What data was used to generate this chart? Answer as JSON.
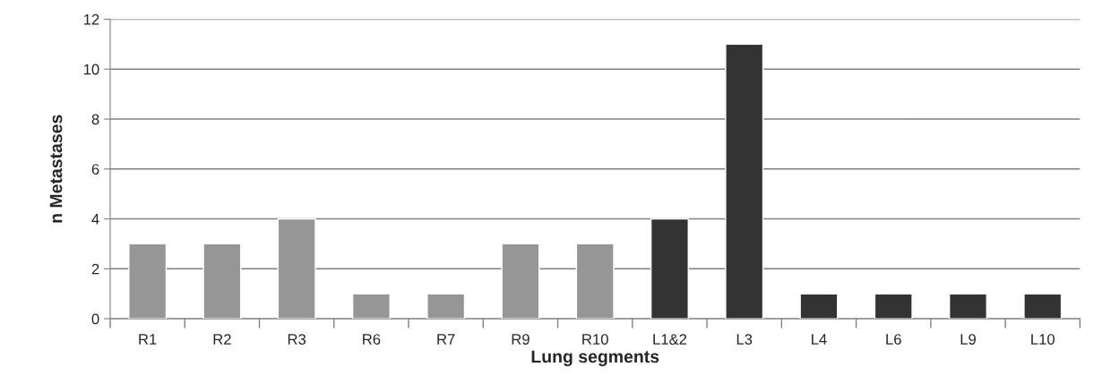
{
  "chart_data": {
    "type": "bar",
    "xlabel": "Lung segments",
    "ylabel": "n Metastases",
    "categories": [
      "R1",
      "R2",
      "R3",
      "R6",
      "R7",
      "R9",
      "R10",
      "L1&2",
      "L3",
      "L4",
      "L6",
      "L9",
      "L10"
    ],
    "values": [
      3,
      3,
      4,
      1,
      1,
      3,
      3,
      4,
      11,
      1,
      1,
      1,
      1
    ],
    "colors": [
      "#969696",
      "#969696",
      "#969696",
      "#969696",
      "#969696",
      "#969696",
      "#969696",
      "#333333",
      "#333333",
      "#333333",
      "#333333",
      "#333333",
      "#333333"
    ],
    "ylim": [
      0,
      12
    ],
    "yticks": [
      0,
      2,
      4,
      6,
      8,
      10,
      12
    ],
    "grid": "y"
  }
}
